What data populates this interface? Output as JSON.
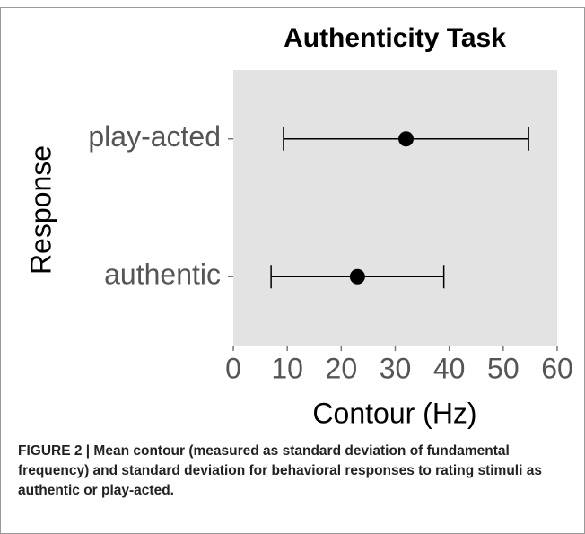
{
  "chart_data": {
    "type": "errorbar",
    "title": "Authenticity Task",
    "x_label": "Contour (Hz)",
    "y_label": "Response",
    "categories": [
      "authentic",
      "play-acted"
    ],
    "values": [
      23,
      32
    ],
    "errors": [
      16,
      22.7
    ],
    "color": "#000000",
    "background": "#e3e3e3",
    "xlim": [
      0,
      60
    ],
    "xticks": [
      0,
      10,
      20,
      30,
      40,
      50,
      60
    ]
  },
  "caption": "FIGURE 2 | Mean contour (measured as standard deviation of fundamental frequency) and standard deviation for behavioral responses to rating stimuli as authentic or play-acted."
}
